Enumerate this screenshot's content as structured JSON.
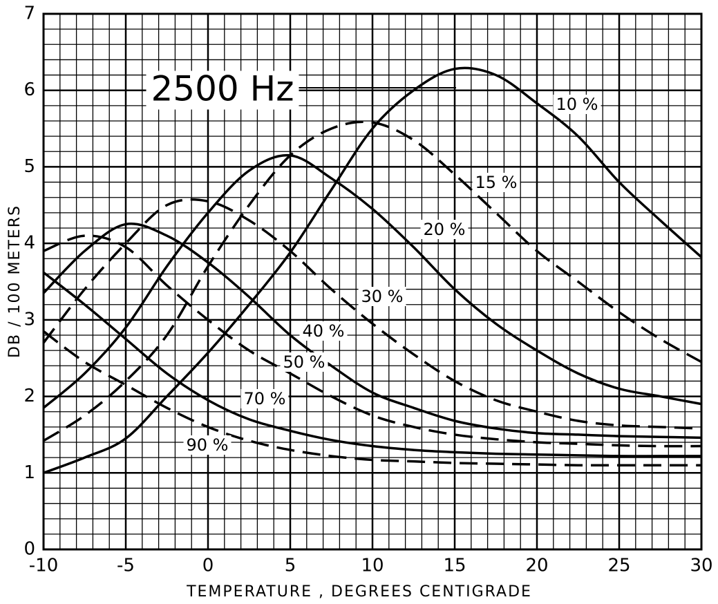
{
  "chart_data": {
    "type": "line",
    "title": "2500 Hz",
    "x_label": "TEMPERATURE , DEGREES CENTIGRADE",
    "y_label": "DB / 100 METERS",
    "x": [
      -10,
      -7.5,
      -5,
      -2.5,
      0,
      2.5,
      5,
      7.5,
      10,
      12.5,
      15,
      17.5,
      20,
      22.5,
      25,
      27.5,
      30
    ],
    "series": [
      {
        "name": "10 %",
        "color": "#000000",
        "dashed": false,
        "values": [
          1.0,
          1.2,
          1.45,
          2.0,
          2.57,
          3.2,
          3.88,
          4.7,
          5.5,
          6.0,
          6.28,
          6.2,
          5.83,
          5.4,
          4.8,
          4.3,
          3.82
        ]
      },
      {
        "name": "15 %",
        "color": "#000000",
        "dashed": true,
        "values": [
          1.42,
          1.75,
          2.2,
          2.8,
          3.7,
          4.5,
          5.15,
          5.5,
          5.58,
          5.35,
          4.9,
          4.4,
          3.9,
          3.5,
          3.1,
          2.75,
          2.45
        ]
      },
      {
        "name": "20 %",
        "color": "#000000",
        "dashed": false,
        "values": [
          1.85,
          2.3,
          2.9,
          3.7,
          4.4,
          4.95,
          5.15,
          4.85,
          4.45,
          3.95,
          3.4,
          2.95,
          2.6,
          2.3,
          2.1,
          2.0,
          1.9
        ]
      },
      {
        "name": "30 %",
        "color": "#000000",
        "dashed": true,
        "values": [
          2.7,
          3.4,
          4.0,
          4.5,
          4.55,
          4.3,
          3.9,
          3.4,
          2.95,
          2.55,
          2.2,
          1.95,
          1.8,
          1.68,
          1.62,
          1.6,
          1.58
        ]
      },
      {
        "name": "40 %",
        "color": "#000000",
        "dashed": false,
        "values": [
          3.35,
          3.9,
          4.25,
          4.1,
          3.75,
          3.3,
          2.8,
          2.4,
          2.05,
          1.85,
          1.68,
          1.58,
          1.52,
          1.5,
          1.48,
          1.47,
          1.46
        ]
      },
      {
        "name": "50 %",
        "color": "#000000",
        "dashed": true,
        "values": [
          3.9,
          4.1,
          3.95,
          3.45,
          3.0,
          2.6,
          2.3,
          2.0,
          1.75,
          1.6,
          1.5,
          1.44,
          1.4,
          1.38,
          1.36,
          1.35,
          1.35
        ]
      },
      {
        "name": "70 %",
        "color": "#000000",
        "dashed": false,
        "values": [
          3.62,
          3.2,
          2.75,
          2.3,
          1.95,
          1.7,
          1.55,
          1.43,
          1.35,
          1.3,
          1.27,
          1.25,
          1.24,
          1.23,
          1.22,
          1.22,
          1.22
        ]
      },
      {
        "name": "90 %",
        "color": "#000000",
        "dashed": true,
        "values": [
          2.85,
          2.45,
          2.15,
          1.85,
          1.6,
          1.42,
          1.3,
          1.22,
          1.17,
          1.15,
          1.13,
          1.12,
          1.11,
          1.1,
          1.1,
          1.1,
          1.1
        ]
      }
    ],
    "xlim": [
      -10,
      30
    ],
    "ylim": [
      0,
      7
    ],
    "xticks": [
      -10,
      -5,
      0,
      5,
      10,
      15,
      20,
      25,
      30
    ],
    "yticks": [
      0,
      1,
      2,
      3,
      4,
      5,
      6,
      7
    ],
    "grid": true,
    "minor_divisions": 5
  }
}
